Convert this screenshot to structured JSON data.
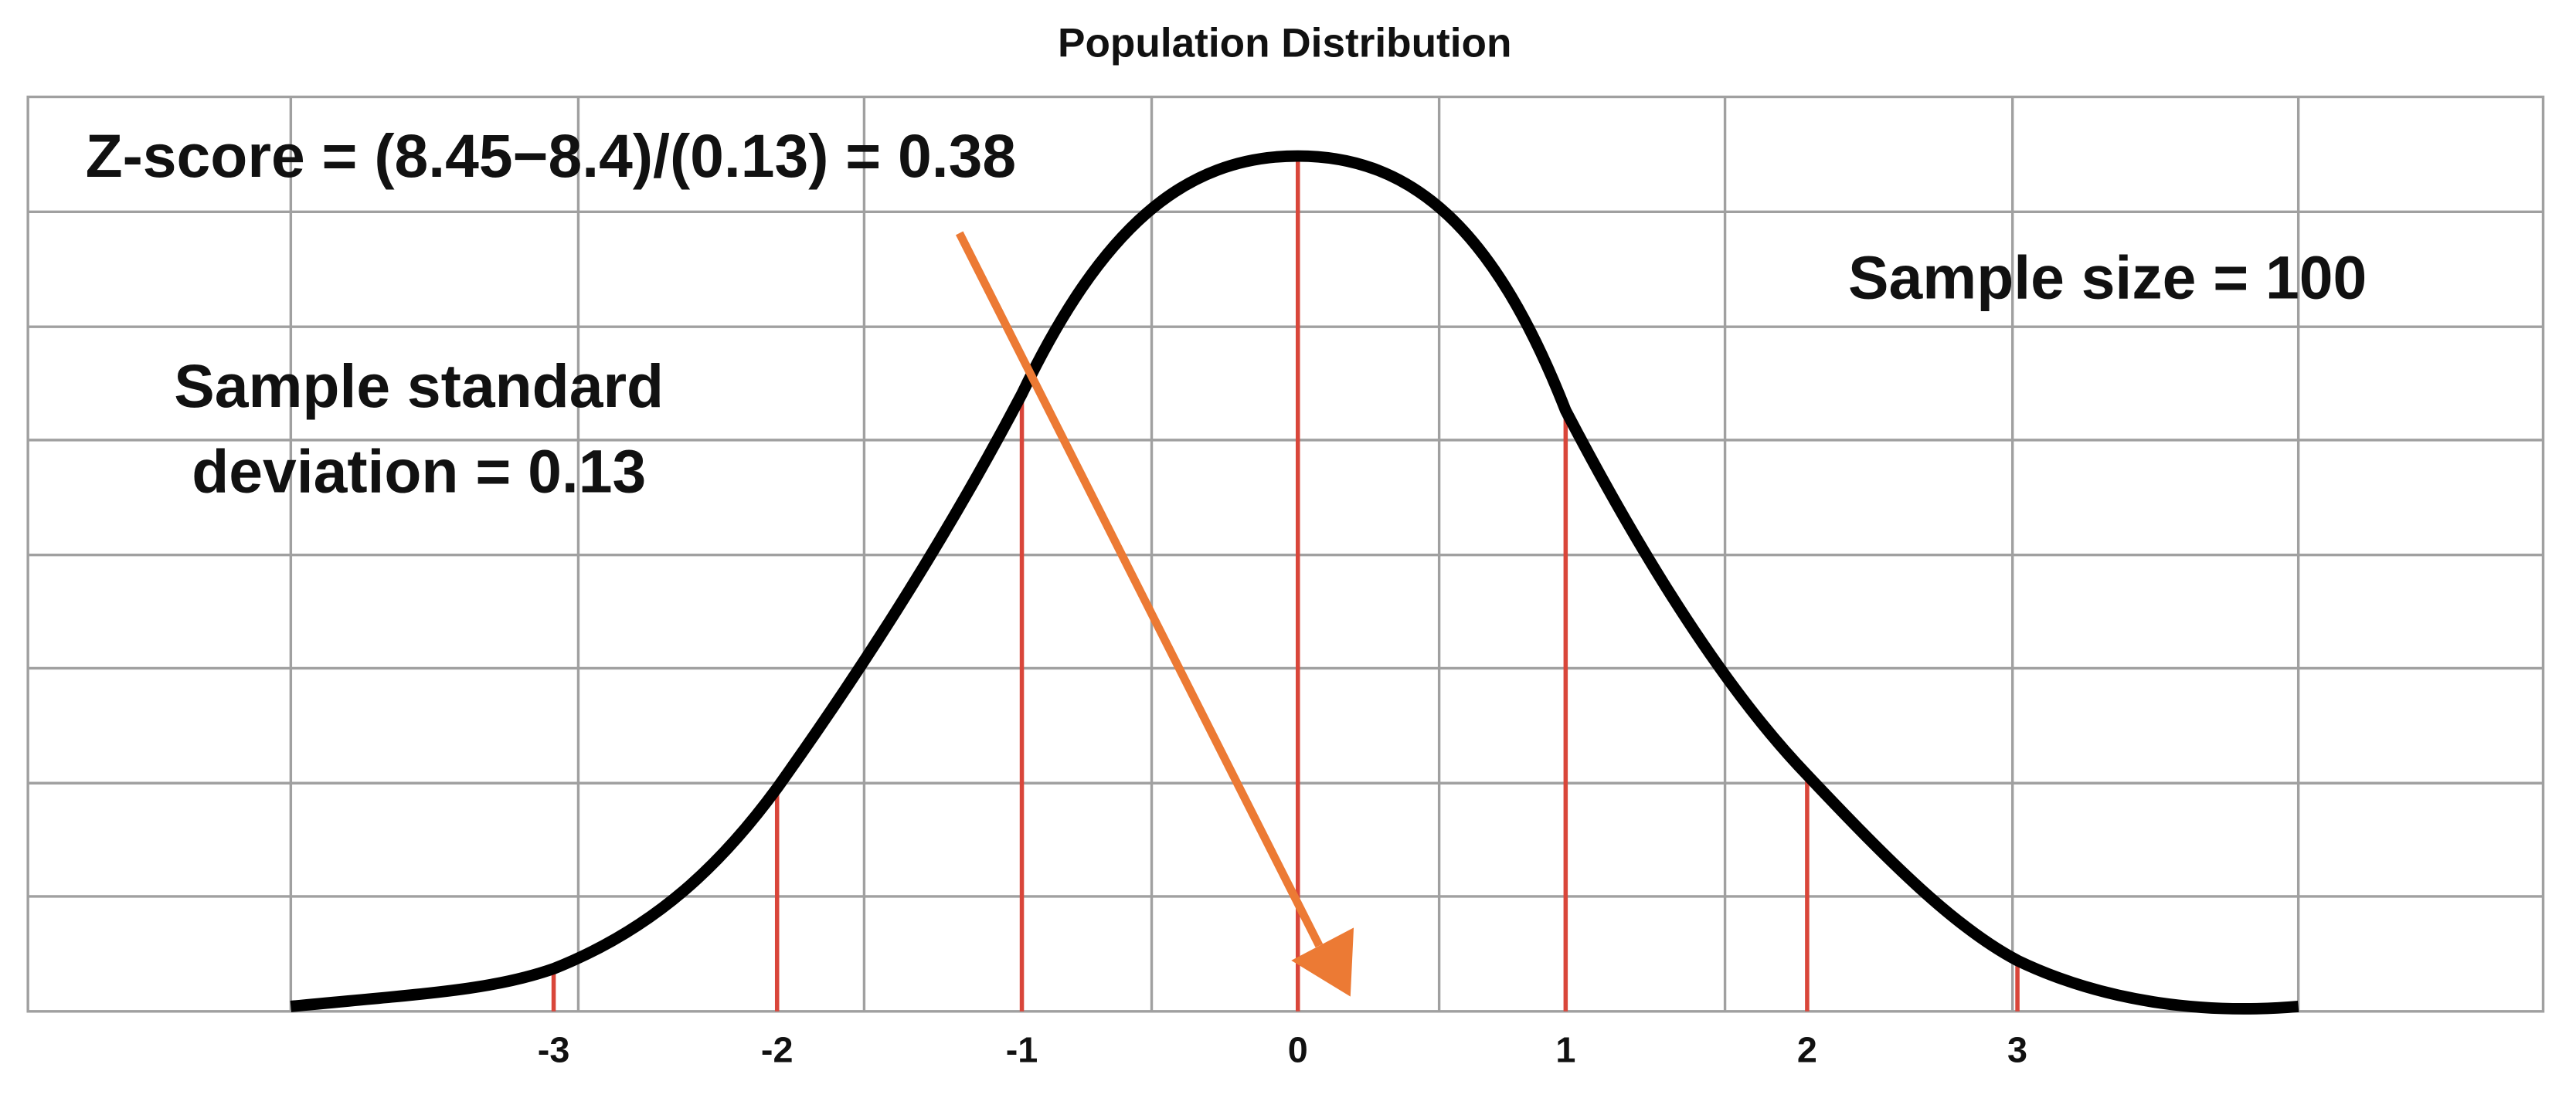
{
  "title": "Population Distribution",
  "annotations": {
    "z_score": "Z-score = (8.45−8.4)/(0.13) = 0.38",
    "sample_size": "Sample size = 100",
    "sample_sd_line1": "Sample standard",
    "sample_sd_line2": "deviation = 0.13"
  },
  "axis_labels": [
    "-3",
    "-2",
    "-1",
    "0",
    "1",
    "2",
    "3"
  ]
}
